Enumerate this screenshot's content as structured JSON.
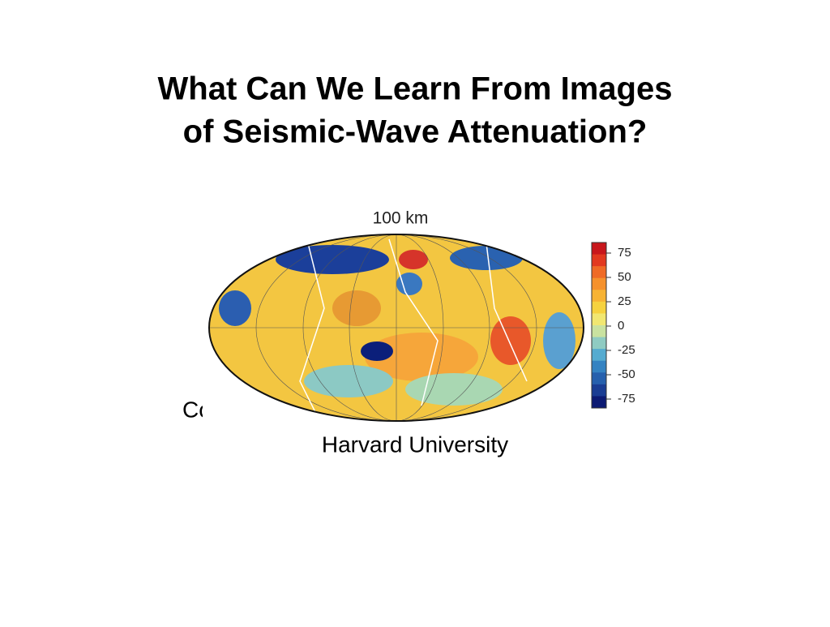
{
  "slide": {
    "title_lines": [
      "What Can We Learn From Images",
      "of Seismic-Wave Attenuation?"
    ],
    "figure": {
      "title": "100 km",
      "colorbar": {
        "ticks": [
          75,
          50,
          25,
          0,
          -25,
          -50,
          -75
        ]
      }
    },
    "author_fragment": "Co",
    "affiliation": "Harvard University"
  }
}
